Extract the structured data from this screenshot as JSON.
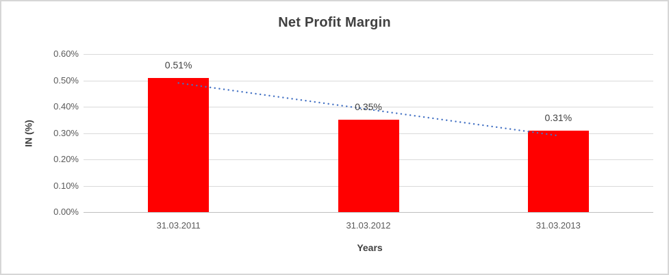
{
  "chart_data": {
    "type": "bar",
    "title": "Net Profit Margin",
    "xlabel": "Years",
    "ylabel": "IN (%)",
    "categories": [
      "31.03.2011",
      "31.03.2012",
      "31.03.2013"
    ],
    "values": [
      0.51,
      0.35,
      0.31
    ],
    "data_labels": [
      "0.51%",
      "0.35%",
      "0.31%"
    ],
    "ylim": [
      0,
      0.6
    ],
    "ytick_step": 0.1,
    "ytick_labels": [
      "0.00%",
      "0.10%",
      "0.20%",
      "0.30%",
      "0.40%",
      "0.50%",
      "0.60%"
    ],
    "grid": true,
    "legend": "none",
    "bar_color": "#ff0000",
    "trendline": {
      "type": "linear",
      "style": "dotted",
      "color": "#4472c4",
      "start_value": 0.49,
      "end_value": 0.29
    },
    "colors": {
      "title": "#404040",
      "axis_title": "#404040",
      "tick_label": "#595959",
      "data_label": "#404040",
      "gridline": "#d9d9d9",
      "axis_line": "#bfbfbf",
      "frame_border": "#d6d6d6",
      "background": "#ffffff"
    }
  }
}
